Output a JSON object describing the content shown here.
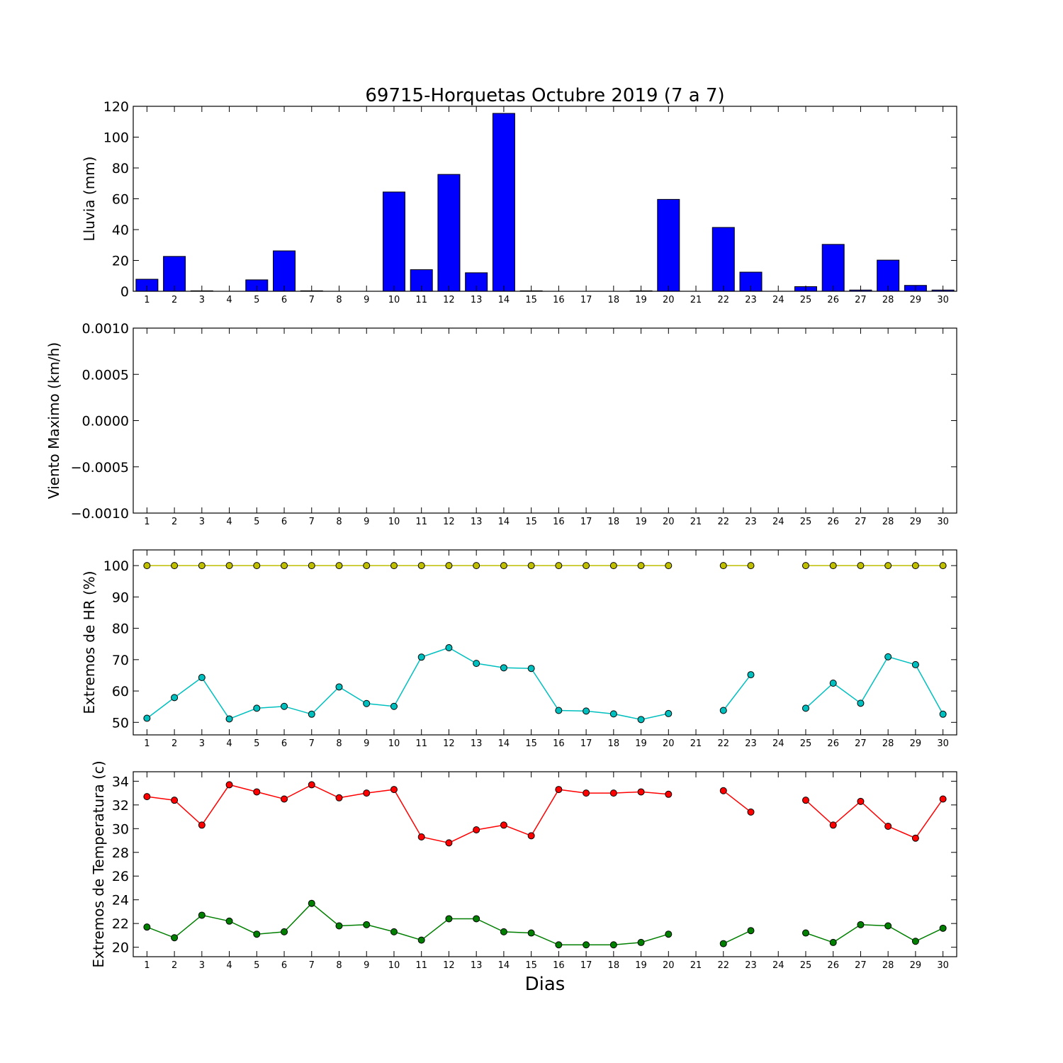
{
  "figure": {
    "title": "69715-Horquetas Octubre 2019  (7 a 7)",
    "xlabel": "Dias"
  },
  "chart_data": [
    {
      "type": "bar",
      "ylabel": "Lluvia (mm)",
      "categories": [
        1,
        2,
        3,
        4,
        5,
        6,
        7,
        8,
        9,
        10,
        11,
        12,
        13,
        14,
        15,
        16,
        17,
        18,
        19,
        20,
        21,
        22,
        23,
        24,
        25,
        26,
        27,
        28,
        29,
        30
      ],
      "values": [
        7.8,
        22.6,
        0.3,
        0,
        7.4,
        26.2,
        0.3,
        0,
        0,
        64.4,
        14.0,
        75.8,
        12.0,
        115.4,
        0.3,
        0,
        0,
        0,
        0.3,
        59.6,
        0,
        41.4,
        12.4,
        0,
        3.0,
        30.4,
        0.8,
        20.2,
        3.8,
        0.8
      ],
      "yticks": [
        "0",
        "20",
        "40",
        "60",
        "80",
        "100",
        "120"
      ],
      "ylim": [
        0,
        120
      ],
      "colors": {
        "bar": "#0000ff",
        "edge": "#000000"
      }
    },
    {
      "type": "line",
      "ylabel": "Viento Maximo (km/h)",
      "categories": [
        1,
        2,
        3,
        4,
        5,
        6,
        7,
        8,
        9,
        10,
        11,
        12,
        13,
        14,
        15,
        16,
        17,
        18,
        19,
        20,
        21,
        22,
        23,
        24,
        25,
        26,
        27,
        28,
        29,
        30
      ],
      "series": [],
      "yticks": [
        "−0.0010",
        "−0.0005",
        "0.0000",
        "0.0005",
        "0.0010"
      ],
      "ylim": [
        -0.001,
        0.001
      ]
    },
    {
      "type": "line",
      "ylabel": "Extremos de HR (%)",
      "categories": [
        1,
        2,
        3,
        4,
        5,
        6,
        7,
        8,
        9,
        10,
        11,
        12,
        13,
        14,
        15,
        16,
        17,
        18,
        19,
        20,
        21,
        22,
        23,
        24,
        25,
        26,
        27,
        28,
        29,
        30
      ],
      "series": [
        {
          "color": "#bfbf00",
          "values": [
            100,
            100,
            100,
            100,
            100,
            100,
            100,
            100,
            100,
            100,
            100,
            100,
            100,
            100,
            100,
            100,
            100,
            100,
            100,
            100,
            null,
            100,
            100,
            null,
            100,
            100,
            100,
            100,
            100,
            100
          ]
        },
        {
          "color": "#00bfbf",
          "values": [
            51.3,
            57.9,
            64.3,
            51.1,
            54.5,
            55.1,
            52.6,
            61.3,
            56.0,
            55.1,
            70.8,
            73.8,
            68.8,
            67.4,
            67.2,
            53.8,
            53.6,
            52.7,
            50.9,
            52.8,
            null,
            53.8,
            65.2,
            null,
            54.5,
            62.5,
            56.1,
            70.9,
            68.4,
            52.6
          ]
        }
      ],
      "yticks": [
        "50",
        "60",
        "70",
        "80",
        "90",
        "100"
      ],
      "ylim": [
        46,
        105
      ]
    },
    {
      "type": "line",
      "ylabel": "Extremos de Temperatura (c)",
      "categories": [
        1,
        2,
        3,
        4,
        5,
        6,
        7,
        8,
        9,
        10,
        11,
        12,
        13,
        14,
        15,
        16,
        17,
        18,
        19,
        20,
        21,
        22,
        23,
        24,
        25,
        26,
        27,
        28,
        29,
        30
      ],
      "series": [
        {
          "color": "#ff0000",
          "values": [
            32.7,
            32.4,
            30.3,
            33.7,
            33.1,
            32.5,
            33.7,
            32.6,
            33.0,
            33.3,
            29.3,
            28.8,
            29.9,
            30.3,
            29.4,
            33.3,
            33.0,
            33.0,
            33.1,
            32.9,
            null,
            33.2,
            31.4,
            null,
            32.4,
            30.3,
            32.3,
            30.2,
            29.2,
            32.5
          ]
        },
        {
          "color": "#007f00",
          "values": [
            21.7,
            20.8,
            22.7,
            22.2,
            21.1,
            21.3,
            23.7,
            21.8,
            21.9,
            21.3,
            20.6,
            22.4,
            22.4,
            21.3,
            21.2,
            20.2,
            20.2,
            20.2,
            20.4,
            21.1,
            null,
            20.3,
            21.4,
            null,
            21.2,
            20.4,
            21.9,
            21.8,
            20.5,
            21.6
          ]
        }
      ],
      "yticks": [
        "20",
        "22",
        "24",
        "26",
        "28",
        "30",
        "32",
        "34"
      ],
      "ylim": [
        19.2,
        34.8
      ]
    }
  ]
}
